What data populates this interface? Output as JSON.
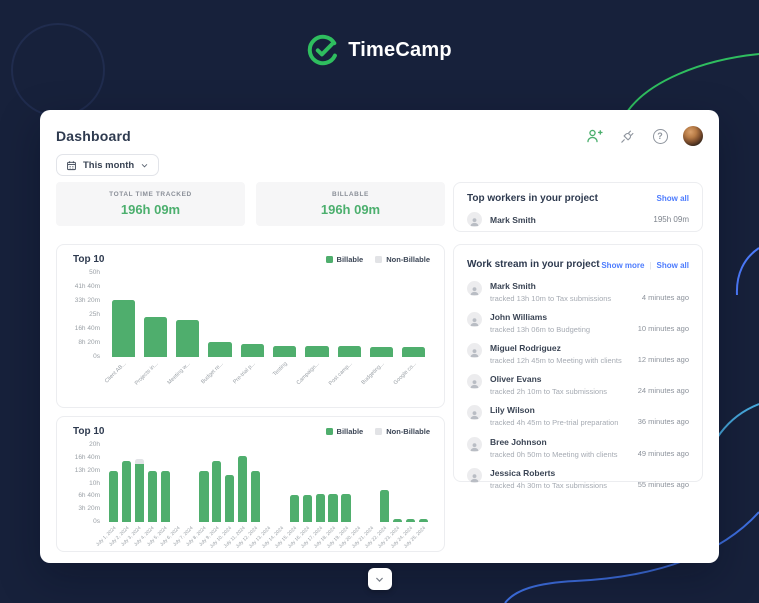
{
  "brand": {
    "name": "TimeCamp",
    "logo_icon": "timecamp-check-logo"
  },
  "colors": {
    "background": "#17213B",
    "accent_green": "#2FBE5F",
    "bar_green": "#4FAE6D",
    "non_billable_gray": "#E2E3E6",
    "link_blue": "#4D7CFE",
    "text_dark": "#2E3A4F",
    "text_gray": "#9AA0A6"
  },
  "header": {
    "title": "Dashboard",
    "date_filter_label": "This month",
    "help_glyph": "?",
    "action_icons": [
      "add-user-icon",
      "plug-icon",
      "help-icon",
      "user-avatar"
    ]
  },
  "stats": [
    {
      "label": "TOTAL TIME TRACKED",
      "value": "196h 09m"
    },
    {
      "label": "BILLABLE",
      "value": "196h 09m"
    }
  ],
  "top_workers": {
    "title": "Top workers in your project",
    "show_all_label": "Show all",
    "rows": [
      {
        "name": "Mark Smith",
        "time": "195h 09m"
      }
    ]
  },
  "work_stream": {
    "title": "Work stream in your project",
    "show_more_label": "Show more",
    "show_all_label": "Show all",
    "rows": [
      {
        "name": "Mark Smith",
        "description": "tracked 13h 10m to Tax submissions",
        "time_ago": "4 minutes ago"
      },
      {
        "name": "John Williams",
        "description": "tracked 13h 06m to Budgeting",
        "time_ago": "10 minutes ago"
      },
      {
        "name": "Miguel Rodriguez",
        "description": "tracked 12h 45m to Meeting with clients",
        "time_ago": "12 minutes ago"
      },
      {
        "name": "Oliver Evans",
        "description": "tracked 2h 10m to Tax submissions",
        "time_ago": "24 minutes ago"
      },
      {
        "name": "Lily Wilson",
        "description": "tracked 4h 45m to Pre-trial preparation",
        "time_ago": "36 minutes ago"
      },
      {
        "name": "Bree Johnson",
        "description": "tracked 0h 50m to Meeting with clients",
        "time_ago": "49 minutes ago"
      },
      {
        "name": "Jessica Roberts",
        "description": "tracked 4h 30m to Tax submissions",
        "time_ago": "55 minutes ago"
      }
    ]
  },
  "chart_data": [
    {
      "type": "bar",
      "title": "Top 10",
      "legend": [
        "Billable",
        "Non-Billable"
      ],
      "legend_position": "top-right",
      "grid": false,
      "unit": "hours",
      "ylim": [
        0,
        50
      ],
      "yticks": [
        "50h",
        "41h 40m",
        "33h 20m",
        "25h",
        "16h 40m",
        "8h 20m",
        "0s"
      ],
      "categories": [
        "Client AB...",
        "Projects in...",
        "Meeting w...",
        "Budget re...",
        "Pre-trial p...",
        "Testing",
        "Campaign...",
        "Post camp...",
        "Budgeting...",
        "Google co..."
      ],
      "series": [
        {
          "name": "Billable",
          "color": "#4FAE6D",
          "values": [
            34,
            24,
            22,
            9,
            7.5,
            6.5,
            6.5,
            6.5,
            6,
            6
          ]
        },
        {
          "name": "Non-Billable",
          "color": "#E2E3E6",
          "values": [
            0,
            0,
            0,
            0,
            0,
            0,
            0,
            0,
            0,
            0
          ]
        }
      ]
    },
    {
      "type": "bar",
      "title": "Top 10",
      "legend": [
        "Billable",
        "Non-Billable"
      ],
      "legend_position": "top-right",
      "grid": false,
      "unit": "hours",
      "ylim": [
        0,
        20
      ],
      "yticks": [
        "20h",
        "16h 40m",
        "13h 20m",
        "10h",
        "6h 40m",
        "3h 20m",
        "0s"
      ],
      "categories": [
        "July 1, 2024",
        "July 2, 2024",
        "July 3, 2024",
        "July 4, 2024",
        "July 5, 2024",
        "July 6, 2024",
        "July 7, 2024",
        "July 8, 2024",
        "July 9, 2024",
        "July 10, 2024",
        "July 11, 2024",
        "July 12, 2024",
        "July 13, 2024",
        "July 14, 2024",
        "July 15, 2024",
        "July 16, 2024",
        "July 17, 2024",
        "July 18, 2024",
        "July 19, 2024",
        "July 20, 2024",
        "July 21, 2024",
        "July 22, 2024",
        "July 23, 2024",
        "July 24, 2024",
        "July 25, 2024"
      ],
      "series": [
        {
          "name": "Billable",
          "color": "#4FAE6D",
          "values": [
            13.3,
            15.8,
            15,
            13.3,
            13.3,
            0,
            0,
            13.3,
            15.8,
            12.3,
            17.1,
            13.3,
            0,
            0,
            7,
            7,
            7.3,
            7.3,
            7.3,
            0,
            0,
            8.3,
            0.8,
            0.8,
            0.8
          ]
        },
        {
          "name": "Non-Billable",
          "color": "#E2E3E6",
          "values": [
            0,
            0,
            1.3,
            0,
            0,
            0,
            0,
            0,
            0,
            0,
            0,
            0,
            0,
            0,
            0,
            0,
            0,
            0,
            0,
            0,
            0,
            0,
            0,
            0,
            0
          ]
        }
      ]
    }
  ],
  "footer": {
    "scroll_button_icon": "chevron-down-icon"
  }
}
